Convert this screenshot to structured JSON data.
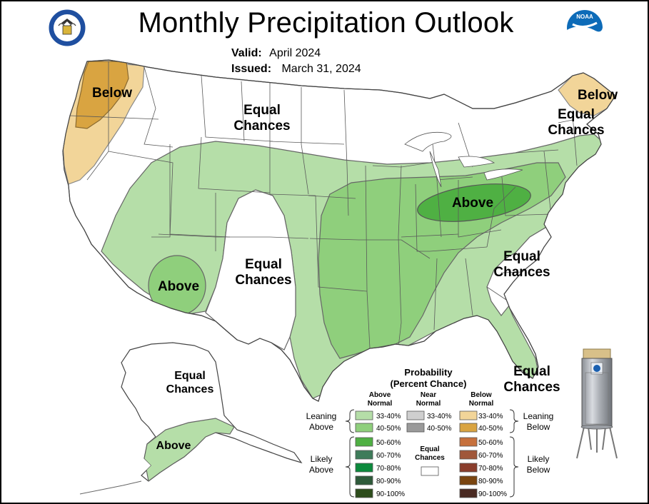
{
  "header": {
    "title": "Monthly Precipitation Outlook",
    "valid_label": "Valid:",
    "valid_value": "April 2024",
    "issued_label": "Issued:",
    "issued_value": "March 31, 2024",
    "left_logo": "doc-seal-icon",
    "right_logo": "noaa-logo-icon",
    "noaa_text": "NOAA"
  },
  "map_labels": {
    "below_nw": "Below",
    "below_ne": "Below",
    "equal_north": [
      "Equal",
      "Chances"
    ],
    "equal_ne": [
      "Equal",
      "Chances"
    ],
    "above_sw": "Above",
    "equal_sw": [
      "Equal",
      "Chances"
    ],
    "above_ohio": "Above",
    "equal_carolinas": [
      "Equal",
      "Chances"
    ],
    "equal_florida": [
      "Equal",
      "Chances"
    ],
    "equal_alaska": [
      "Equal",
      "Chances"
    ],
    "above_alaska": "Above"
  },
  "legend": {
    "title": "Probability",
    "subtitle": "(Percent Chance)",
    "above_header": [
      "Above",
      "Normal"
    ],
    "near_header": [
      "Near",
      "Normal"
    ],
    "below_header": [
      "Below",
      "Normal"
    ],
    "leaning_above": [
      "Leaning",
      "Above"
    ],
    "likely_above": [
      "Likely",
      "Above"
    ],
    "leaning_below": [
      "Leaning",
      "Below"
    ],
    "likely_below": [
      "Likely",
      "Below"
    ],
    "equal_chances": [
      "Equal",
      "Chances"
    ],
    "ranges": [
      "33-40%",
      "40-50%",
      "50-60%",
      "60-70%",
      "70-80%",
      "80-90%",
      "90-100%"
    ],
    "near_ranges": [
      "33-40%",
      "40-50%"
    ],
    "above_colors": [
      "#b5dea8",
      "#8fcf7c",
      "#4fb043",
      "#3e7c5a",
      "#0b8a3c",
      "#2e5a3a",
      "#2d4d1c"
    ],
    "near_colors": [
      "#cfcfcf",
      "#9a9a9a"
    ],
    "below_colors": [
      "#f2d599",
      "#d9a441",
      "#c6703c",
      "#a0573a",
      "#8a3d2c",
      "#7a4510",
      "#4a2a22"
    ],
    "equal_color": "#ffffff"
  },
  "colors": {
    "above_33_40": "#b5dea8",
    "above_40_50": "#8fcf7c",
    "above_50_60": "#4fb043",
    "below_33_40": "#f2d599",
    "below_40_50": "#d9a441",
    "state_lines": "#3a3a3a"
  },
  "image": {
    "rain_gauge": "rain-gauge-photo"
  }
}
